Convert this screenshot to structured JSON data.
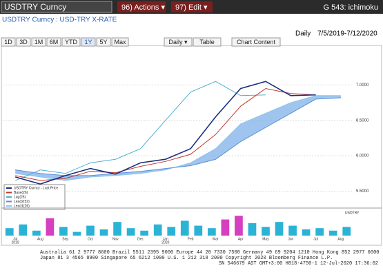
{
  "toolbar": {
    "security": "USDTRY Curncy",
    "actions": "96) Actions ▾",
    "edit": "97) Edit ▾",
    "function": "G 543: ichimoku"
  },
  "header": {
    "description": "USDTRY Curncy : USD-TRY X-RATE",
    "period": "Daily",
    "range": "7/5/2019-7/12/2020"
  },
  "buttons": [
    "1D",
    "3D",
    "1M",
    "6M",
    "YTD",
    "1Y",
    "5Y",
    "Max",
    "Daily ▾",
    "Table",
    "Chart Content"
  ],
  "selected_button": 5,
  "chart_data": [
    {
      "type": "line",
      "categories": [
        "Jul",
        "Aug",
        "Sep",
        "Oct",
        "Nov",
        "Dec",
        "Jan",
        "Feb",
        "Mar",
        "Apr",
        "May",
        "Jun",
        "Jul",
        "Aug"
      ],
      "years": [
        "2019",
        "2020"
      ],
      "ylim": [
        5.3,
        7.5
      ],
      "yticks": [
        {
          "value": 5.5,
          "label": "5.5000"
        },
        {
          "value": 6,
          "label": "6.0000"
        },
        {
          "value": 6.5,
          "label": "6.5000"
        },
        {
          "value": 7,
          "label": "7.0000"
        }
      ],
      "cloud_color": "#7fb2ea",
      "series": [
        {
          "name": "Lead1(26)",
          "color": "#8fc3ee",
          "values": [
            5.75,
            5.7,
            5.65,
            5.7,
            5.72,
            5.75,
            5.8,
            5.9,
            6.1,
            6.45,
            6.6,
            6.75,
            6.85,
            6.85
          ]
        },
        {
          "name": "Lead2(52)",
          "color": "#5a8fd6",
          "values": [
            5.8,
            5.75,
            5.72,
            5.72,
            5.75,
            5.78,
            5.82,
            5.86,
            5.95,
            6.2,
            6.4,
            6.6,
            6.8,
            6.82
          ]
        },
        {
          "name": "Lag(26)",
          "color": "#4fb0cf",
          "values": [
            5.65,
            5.8,
            5.75,
            5.9,
            5.95,
            6.1,
            6.5,
            6.9,
            7.05,
            6.85,
            6.86,
            null,
            null,
            null
          ]
        },
        {
          "name": "Base(26)",
          "color": "#c0392b",
          "values": [
            5.72,
            5.65,
            5.68,
            5.78,
            5.76,
            5.85,
            5.92,
            6.02,
            6.3,
            6.7,
            6.95,
            6.88,
            6.86,
            null
          ]
        },
        {
          "name": "USDTRY Curncy - Last Price",
          "color": "#1a2f80",
          "values": [
            5.7,
            5.6,
            5.72,
            5.82,
            5.74,
            5.9,
            5.95,
            6.1,
            6.55,
            6.95,
            7.05,
            6.85,
            6.86,
            null
          ]
        }
      ]
    },
    {
      "type": "bar",
      "title": "USDTRY",
      "ylim": [
        0,
        100
      ],
      "color": "#2bb3d6",
      "high_color": "#d63fbf",
      "high_threshold": 60,
      "values": [
        30,
        45,
        20,
        70,
        35,
        15,
        40,
        25,
        55,
        30,
        20,
        45,
        35,
        60,
        40,
        30,
        65,
        80,
        50,
        35,
        55,
        40,
        25,
        30,
        20,
        35
      ]
    }
  ],
  "footer": {
    "lines": [
      "Australia 61 2 9777 8600  Brazil 5511 2395 9000  Europe 44 20 7330 7500  Germany 49 69 9204 1210  Hong Kong 852 2977 6000",
      "Japan 81 3 4565 8900      Singapore 65 6212 1000      U.S. 1 212 318 2000      Copyright 2020 Bloomberg Finance L.P.",
      "SN 546679 AST  GMT+3:00 H818-4750-1 12-Jul-2020 17:36:02"
    ]
  }
}
